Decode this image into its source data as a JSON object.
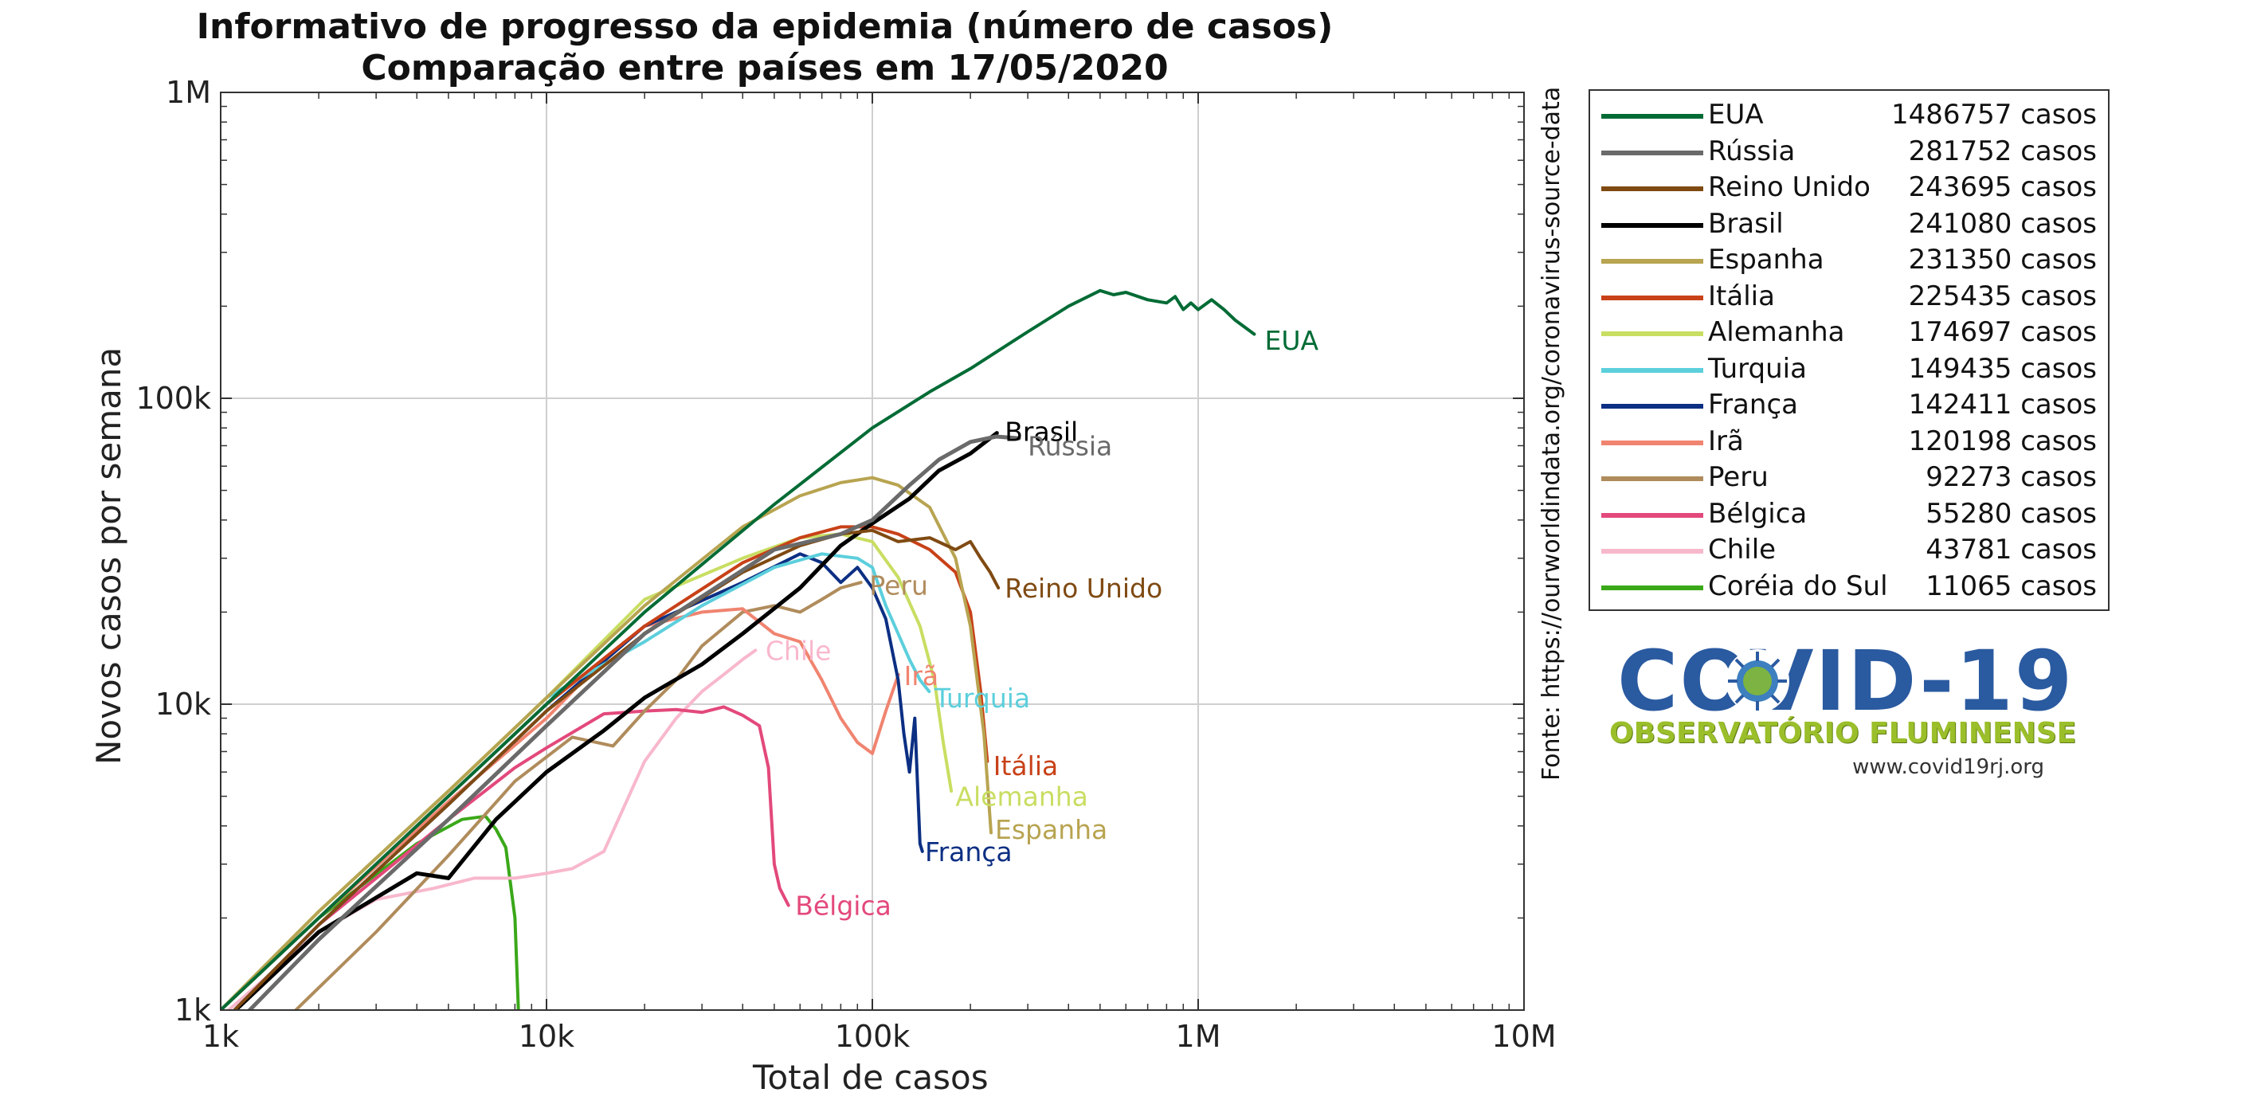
{
  "chart_data": {
    "type": "line",
    "title": [
      "Informativo de progresso da epidemia (número de casos)",
      "Comparação entre países em 17/05/2020"
    ],
    "xlabel": "Total de casos",
    "ylabel": "Novos casos por semana",
    "xscale": "log",
    "yscale": "log",
    "xlim": [
      1000,
      10000000
    ],
    "ylim": [
      1000,
      1000000
    ],
    "xticks": [
      {
        "v": 1000,
        "label": "1k"
      },
      {
        "v": 10000,
        "label": "10k"
      },
      {
        "v": 100000,
        "label": "100k"
      },
      {
        "v": 1000000,
        "label": "1M"
      },
      {
        "v": 10000000,
        "label": "10M"
      }
    ],
    "yticks": [
      {
        "v": 1000,
        "label": "1k"
      },
      {
        "v": 10000,
        "label": "10k"
      },
      {
        "v": 100000,
        "label": "100k"
      },
      {
        "v": 1000000,
        "label": "1M"
      }
    ],
    "grid": true,
    "legend_position": "right",
    "source": "Fonte: https://ourworldindata.org/coronavirus-source-data",
    "series": [
      {
        "name": "EUA",
        "total": "1486757",
        "color": "#006b35",
        "width": 4,
        "x": [
          1000,
          2000,
          5000,
          10000,
          20000,
          50000,
          100000,
          150000,
          200000,
          300000,
          400000,
          500000,
          550000,
          600000,
          700000,
          800000,
          850000,
          900000,
          950000,
          1000000,
          1100000,
          1200000,
          1300000,
          1486757
        ],
        "y": [
          1000,
          2000,
          5000,
          10000,
          20000,
          45000,
          80000,
          105000,
          125000,
          165000,
          200000,
          225000,
          218000,
          222000,
          210000,
          205000,
          215000,
          195000,
          205000,
          195000,
          210000,
          195000,
          180000,
          162000
        ]
      },
      {
        "name": "Rússia",
        "total": "281752",
        "color": "#6a6a6a",
        "width": 5,
        "x": [
          1000,
          2000,
          5000,
          10000,
          20000,
          50000,
          80000,
          100000,
          130000,
          160000,
          200000,
          240000,
          281752
        ],
        "y": [
          800,
          1700,
          4200,
          8500,
          17000,
          32000,
          36000,
          40000,
          52000,
          63000,
          72000,
          75000,
          74000
        ]
      },
      {
        "name": "Reino Unido",
        "total": "243695",
        "color": "#7f4a12",
        "width": 4,
        "x": [
          1000,
          2000,
          5000,
          10000,
          20000,
          40000,
          60000,
          80000,
          100000,
          120000,
          150000,
          180000,
          200000,
          215000,
          230000,
          243695
        ],
        "y": [
          900,
          1900,
          4700,
          9500,
          17000,
          27000,
          33000,
          36000,
          37000,
          34000,
          35000,
          32000,
          34000,
          30000,
          27000,
          24000
        ]
      },
      {
        "name": "Brasil",
        "total": "241080",
        "color": "#000000",
        "width": 5,
        "x": [
          1000,
          2000,
          4000,
          5000,
          7000,
          10000,
          15000,
          20000,
          30000,
          40000,
          60000,
          80000,
          100000,
          130000,
          160000,
          200000,
          241080
        ],
        "y": [
          900,
          1800,
          2800,
          2700,
          4200,
          6000,
          8200,
          10500,
          13500,
          17000,
          24000,
          33000,
          39000,
          47000,
          58000,
          66000,
          77000
        ]
      },
      {
        "name": "Espanha",
        "total": "231350",
        "color": "#b8a451",
        "width": 4,
        "x": [
          1000,
          2000,
          5000,
          10000,
          20000,
          40000,
          60000,
          80000,
          100000,
          120000,
          150000,
          180000,
          200000,
          220000,
          231350
        ],
        "y": [
          1000,
          2100,
          5200,
          10500,
          21000,
          38000,
          48000,
          53000,
          55000,
          52000,
          44000,
          30000,
          18000,
          8000,
          3800
        ]
      },
      {
        "name": "Itália",
        "total": "225435",
        "color": "#c84118",
        "width": 4,
        "x": [
          1000,
          2000,
          5000,
          10000,
          20000,
          40000,
          60000,
          80000,
          100000,
          120000,
          150000,
          180000,
          200000,
          215000,
          225435
        ],
        "y": [
          1000,
          2000,
          5000,
          10000,
          18000,
          29000,
          35000,
          38000,
          38000,
          36000,
          32000,
          27000,
          20000,
          11000,
          6500
        ]
      },
      {
        "name": "Alemanha",
        "total": "174697",
        "color": "#c8de62",
        "width": 4,
        "x": [
          1000,
          2000,
          5000,
          10000,
          20000,
          40000,
          60000,
          80000,
          100000,
          120000,
          140000,
          155000,
          165000,
          174697
        ],
        "y": [
          1000,
          2100,
          5200,
          10500,
          22000,
          30000,
          35000,
          36000,
          34000,
          26000,
          18000,
          12000,
          7500,
          5200
        ]
      },
      {
        "name": "Turquia",
        "total": "149435",
        "color": "#5ccfdc",
        "width": 4,
        "x": [
          1000,
          2000,
          5000,
          10000,
          15000,
          20000,
          30000,
          50000,
          70000,
          90000,
          100000,
          110000,
          120000,
          130000,
          140000,
          149435
        ],
        "y": [
          1000,
          2100,
          5200,
          10500,
          13500,
          16000,
          21000,
          28000,
          31000,
          30000,
          28000,
          21000,
          17000,
          14000,
          12000,
          11000
        ]
      },
      {
        "name": "França",
        "total": "142411",
        "color": "#0c2f83",
        "width": 4,
        "x": [
          1000,
          2000,
          5000,
          10000,
          20000,
          40000,
          60000,
          70000,
          80000,
          90000,
          100000,
          110000,
          120000,
          125000,
          130000,
          135000,
          140000,
          142411
        ],
        "y": [
          900,
          1900,
          4700,
          9500,
          18000,
          25000,
          31000,
          29000,
          25000,
          28000,
          24000,
          19000,
          12000,
          8000,
          6000,
          9000,
          3500,
          3300
        ]
      },
      {
        "name": "Irã",
        "total": "120198",
        "color": "#f08470",
        "width": 4,
        "x": [
          1000,
          2000,
          5000,
          10000,
          15000,
          20000,
          30000,
          40000,
          50000,
          60000,
          70000,
          80000,
          90000,
          100000,
          110000,
          120198
        ],
        "y": [
          1000,
          2000,
          4800,
          9000,
          14000,
          18000,
          20000,
          20500,
          17000,
          16000,
          12000,
          9000,
          7500,
          6900,
          9500,
          12500
        ]
      },
      {
        "name": "Peru",
        "total": "92273",
        "color": "#b08c5c",
        "width": 4,
        "x": [
          1700,
          3000,
          5000,
          8000,
          12000,
          16000,
          20000,
          25000,
          30000,
          40000,
          50000,
          60000,
          70000,
          80000,
          92273
        ],
        "y": [
          1000,
          1800,
          3200,
          5600,
          7800,
          7300,
          9500,
          12000,
          15500,
          20000,
          21000,
          20000,
          22000,
          24000,
          25000
        ]
      },
      {
        "name": "Bélgica",
        "total": "55280",
        "color": "#e3497b",
        "width": 4,
        "x": [
          1000,
          2000,
          5000,
          8000,
          10000,
          15000,
          20000,
          25000,
          30000,
          35000,
          40000,
          45000,
          48000,
          50000,
          52000,
          55280
        ],
        "y": [
          900,
          1900,
          4200,
          6200,
          7200,
          9300,
          9500,
          9600,
          9400,
          9800,
          9200,
          8500,
          6200,
          3000,
          2500,
          2200
        ]
      },
      {
        "name": "Chile",
        "total": "43781",
        "color": "#f8b8cc",
        "width": 4,
        "x": [
          1000,
          2000,
          3000,
          4500,
          6000,
          8000,
          10000,
          12000,
          15000,
          20000,
          25000,
          30000,
          35000,
          40000,
          43781
        ],
        "y": [
          950,
          1800,
          2300,
          2500,
          2700,
          2700,
          2800,
          2900,
          3300,
          6500,
          9000,
          11000,
          12500,
          14000,
          15000
        ]
      },
      {
        "name": "Coréia do Sul",
        "total": "11065",
        "color": "#3aa819",
        "width": 4,
        "x": [
          1000,
          2000,
          4000,
          5500,
          6500,
          7000,
          7500,
          8000,
          8200
        ],
        "y": [
          1000,
          2000,
          3500,
          4200,
          4300,
          3900,
          3400,
          2000,
          1000
        ]
      }
    ],
    "end_labels": [
      {
        "text": "EUA",
        "color": "#006b35",
        "x": 1600000,
        "y": 155000
      },
      {
        "text": "Brasil",
        "color": "#000000",
        "x": 255000,
        "y": 78000
      },
      {
        "text": "Rússia",
        "color": "#6a6a6a",
        "x": 300000,
        "y": 70000
      },
      {
        "text": "Reino Unido",
        "color": "#7f4a12",
        "x": 255000,
        "y": 24000
      },
      {
        "text": "Peru",
        "color": "#b08c5c",
        "x": 98000,
        "y": 24500
      },
      {
        "text": "Chile",
        "color": "#f8b8cc",
        "x": 47000,
        "y": 15000
      },
      {
        "text": "Irã",
        "color": "#f08470",
        "x": 125000,
        "y": 12400
      },
      {
        "text": "Turquia",
        "color": "#5ccfdc",
        "x": 155000,
        "y": 10500
      },
      {
        "text": "Itália",
        "color": "#c84118",
        "x": 235000,
        "y": 6300
      },
      {
        "text": "Alemanha",
        "color": "#c8de62",
        "x": 180000,
        "y": 5000
      },
      {
        "text": "Espanha",
        "color": "#b8a451",
        "x": 238000,
        "y": 3900
      },
      {
        "text": "França",
        "color": "#0c2f83",
        "x": 145000,
        "y": 3300
      },
      {
        "text": "Bélgica",
        "color": "#e3497b",
        "x": 58000,
        "y": 2200
      }
    ]
  },
  "legend": {
    "suffix": "casos"
  },
  "logo": {
    "title": "COVID-19",
    "subtitle": "OBSERVATÓRIO FLUMINENSE",
    "url": "www.covid19rj.org"
  }
}
